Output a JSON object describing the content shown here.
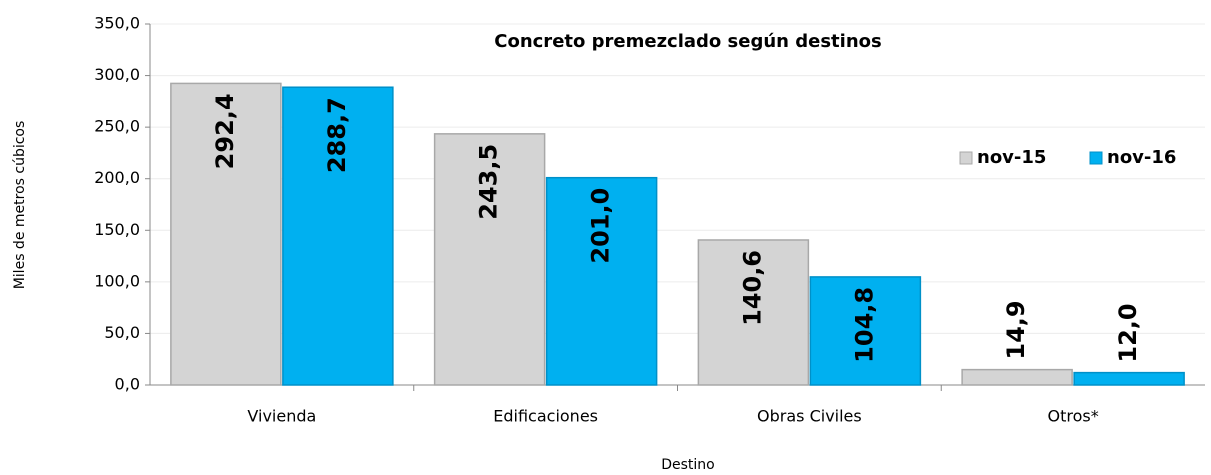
{
  "chart_data": {
    "type": "bar",
    "title": "Concreto premezclado según destinos",
    "x_label": "Destino",
    "y_label": "Miles de metros cúbicos",
    "categories": [
      "Vivienda",
      "Edificaciones",
      "Obras Civiles",
      "Otros*"
    ],
    "series": [
      {
        "name": "nov-15",
        "color": "#d4d4d4",
        "values": [
          292.4,
          243.5,
          140.6,
          14.9
        ],
        "value_labels": [
          "292,4",
          "243,5",
          "140,6",
          "14,9"
        ]
      },
      {
        "name": "nov-16",
        "color": "#00b0f0",
        "values": [
          288.7,
          201.0,
          104.8,
          12.0
        ],
        "value_labels": [
          "288,7",
          "201,0",
          "104,8",
          "12,0"
        ]
      }
    ],
    "ylim": [
      0,
      350
    ],
    "yticks": [
      {
        "value": 0,
        "label": "0,0"
      },
      {
        "value": 50,
        "label": "50,0"
      },
      {
        "value": 100,
        "label": "100,0"
      },
      {
        "value": 150,
        "label": "150,0"
      },
      {
        "value": 200,
        "label": "200,0"
      },
      {
        "value": 250,
        "label": "250,0"
      },
      {
        "value": 300,
        "label": "300,0"
      },
      {
        "value": 350,
        "label": "350,0"
      }
    ],
    "grid": true,
    "legend": "right"
  }
}
